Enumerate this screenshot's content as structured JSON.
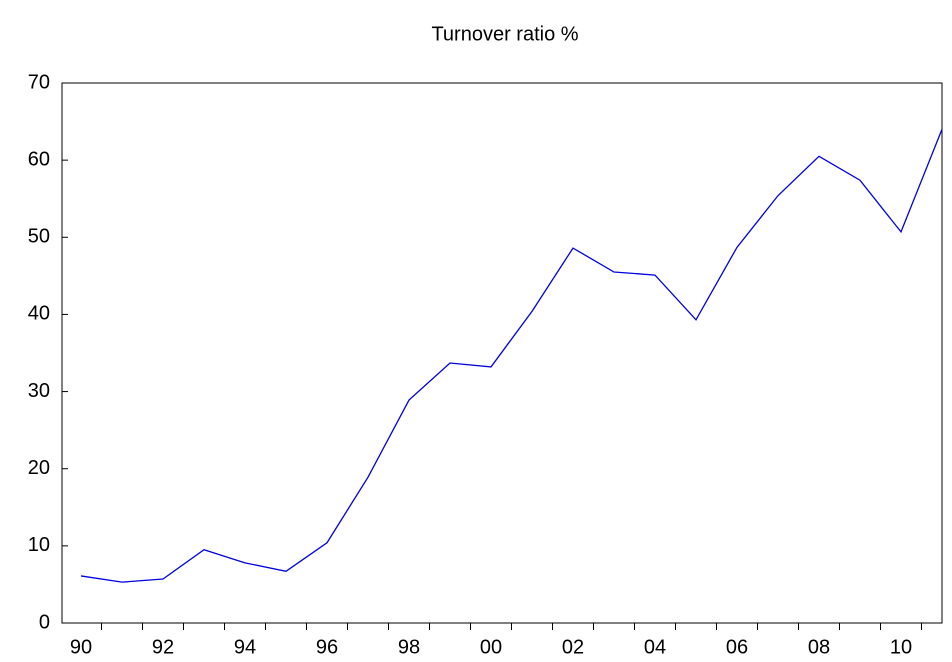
{
  "chart_data": {
    "type": "line",
    "title": "Turnover ratio %",
    "categories": [
      "90",
      null,
      "92",
      null,
      "94",
      null,
      "96",
      null,
      "98",
      null,
      "00",
      null,
      "02",
      null,
      "04",
      null,
      "06",
      null,
      "08",
      null,
      "10",
      null
    ],
    "series": [
      {
        "color": "#0000e0",
        "values": [
          6.1,
          5.3,
          5.7,
          9.5,
          7.8,
          6.7,
          10.4,
          18.9,
          28.9,
          33.7,
          33.2,
          40.4,
          48.6,
          45.5,
          45.1,
          39.3,
          48.7,
          55.4,
          60.5,
          57.4,
          50.7,
          64.0
        ]
      }
    ],
    "ylim": [
      0,
      70
    ],
    "yticks": [
      0,
      10,
      20,
      30,
      40,
      50,
      60,
      70
    ]
  }
}
